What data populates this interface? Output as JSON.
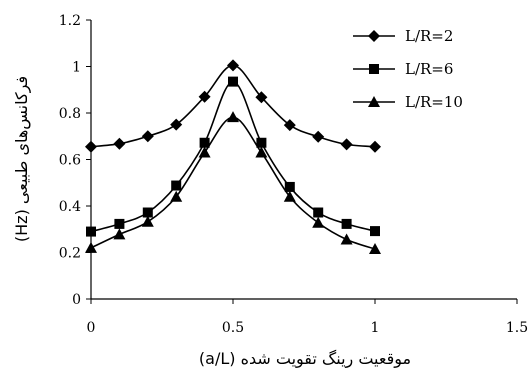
{
  "chart_data": {
    "type": "line",
    "xlabel": "موقعیت رینگ تقویت شده (a/L)",
    "ylabel": "فرکانس‌های طبیعی (Hz)",
    "xlim": [
      0,
      1.5
    ],
    "ylim": [
      0,
      1.2
    ],
    "x_ticks": [
      "0",
      "0.5",
      "1",
      "1.5"
    ],
    "y_ticks": [
      "0",
      "0.2",
      "0.4",
      "0.6",
      "0.8",
      "1",
      "1.2"
    ],
    "x_tick_values": [
      0,
      0.5,
      1,
      1.5
    ],
    "y_tick_values": [
      0,
      0.2,
      0.4,
      0.6,
      0.8,
      1,
      1.2
    ],
    "grid": false,
    "legend_position": "top-right",
    "x": [
      0,
      0.1,
      0.2,
      0.3,
      0.4,
      0.5,
      0.6,
      0.7,
      0.8,
      0.9,
      1.0
    ],
    "series": [
      {
        "name": "L/R=2",
        "marker": "diamond",
        "values": [
          0.655,
          0.668,
          0.7,
          0.75,
          0.87,
          1.005,
          0.868,
          0.748,
          0.698,
          0.665,
          0.655
        ]
      },
      {
        "name": "L/R=6",
        "marker": "square",
        "values": [
          0.29,
          0.323,
          0.372,
          0.488,
          0.672,
          0.935,
          0.672,
          0.482,
          0.372,
          0.323,
          0.292
        ]
      },
      {
        "name": "L/R=10",
        "marker": "triangle",
        "values": [
          0.22,
          0.278,
          0.332,
          0.44,
          0.63,
          0.782,
          0.63,
          0.44,
          0.328,
          0.256,
          0.215
        ]
      }
    ]
  }
}
